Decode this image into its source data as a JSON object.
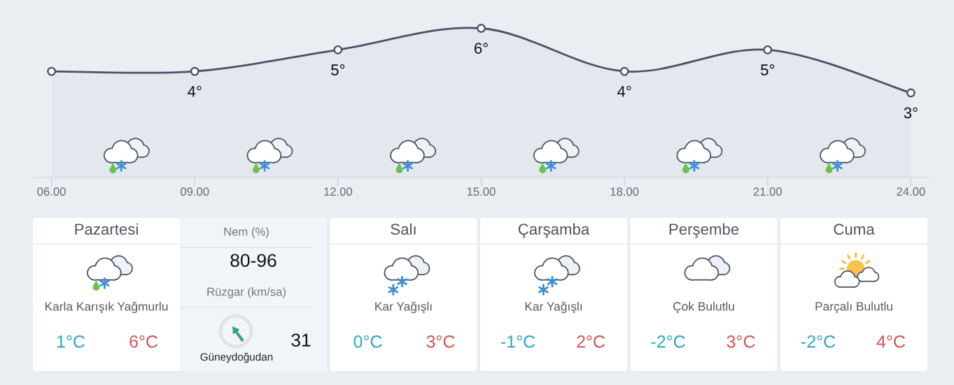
{
  "chart_data": [
    {
      "type": "area",
      "categories": [
        "06.00",
        "09.00",
        "12.00",
        "15.00",
        "18.00",
        "21.00",
        "24.00"
      ],
      "series": [
        {
          "color": "#4b5166",
          "values": [
            4,
            4,
            5,
            6,
            4,
            5,
            3
          ],
          "value_labels": [
            null,
            "4°",
            "5°",
            "6°",
            "4°",
            "5°",
            "3°"
          ]
        }
      ],
      "marker": "circle",
      "tick_labels": "x"
    },
    {
      "type": "other",
      "title": "Pazartesi",
      "annotations": [
        "Karla Karışık Yağmurlu",
        "1°C",
        "6°C",
        "Nem (%)",
        "80-96",
        "Rüzgar (km/sa)",
        "31",
        "Güneydoğudan"
      ]
    },
    {
      "type": "other",
      "title": "Salı",
      "annotations": [
        "Kar Yağışlı",
        "0°C",
        "3°C"
      ]
    },
    {
      "type": "other",
      "title": "Çarşamba",
      "annotations": [
        "Kar Yağışlı",
        "-1°C",
        "2°C"
      ]
    },
    {
      "type": "other",
      "title": "Perşembe",
      "annotations": [
        "Çok Bulutlu",
        "-2°C",
        "3°C"
      ]
    },
    {
      "type": "other",
      "title": "Cuma",
      "annotations": [
        "Parçalı Bulutlu",
        "-2°C",
        "4°C"
      ]
    }
  ]
}
